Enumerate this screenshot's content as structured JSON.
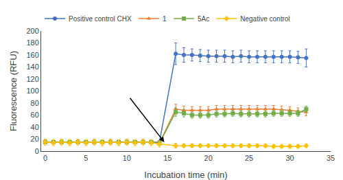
{
  "chart_data": {
    "type": "line",
    "xlabel": "Incubation time (min)",
    "ylabel": "Fluorescence (RFU)",
    "xlim": [
      -0.5,
      35
    ],
    "ylim": [
      0,
      200
    ],
    "xticks": [
      0,
      5,
      10,
      15,
      20,
      25,
      30,
      35
    ],
    "yticks": [
      0,
      20,
      40,
      60,
      80,
      100,
      120,
      140,
      160,
      180,
      200
    ],
    "grid": false,
    "legend": "top",
    "x": [
      0,
      1,
      2,
      3,
      4,
      5,
      6,
      7,
      8,
      9,
      10,
      11,
      12,
      13,
      14,
      16,
      17,
      18,
      19,
      20,
      21,
      22,
      23,
      24,
      25,
      26,
      27,
      28,
      29,
      30,
      31,
      32
    ],
    "series": [
      {
        "name": "Positive control CHX",
        "color": "#4472C4",
        "marker": "circle",
        "line_style": "solid",
        "values": [
          15,
          15,
          15,
          15,
          15,
          15,
          15,
          15,
          15,
          15,
          15,
          15,
          15,
          15,
          15,
          162,
          160,
          160,
          159,
          158,
          158,
          158,
          157,
          158,
          157,
          157,
          157,
          157,
          157,
          157,
          156,
          155
        ],
        "errors": [
          3,
          3,
          3,
          3,
          3,
          3,
          3,
          3,
          3,
          3,
          3,
          3,
          3,
          3,
          3,
          18,
          12,
          10,
          10,
          10,
          10,
          10,
          10,
          10,
          10,
          10,
          10,
          10,
          10,
          10,
          10,
          15
        ]
      },
      {
        "name": "1",
        "color": "#ED7D31",
        "marker": "triangle-up",
        "line_style": "solid",
        "values": [
          15,
          15,
          15,
          15,
          15,
          15,
          15,
          15,
          15,
          15,
          15,
          15,
          15,
          15,
          13,
          70,
          68,
          68,
          68,
          68,
          70,
          70,
          70,
          70,
          70,
          70,
          70,
          70,
          69,
          68,
          66,
          65
        ],
        "errors": [
          3,
          3,
          3,
          3,
          3,
          3,
          3,
          3,
          3,
          3,
          3,
          3,
          3,
          3,
          3,
          8,
          7,
          6,
          6,
          6,
          6,
          6,
          6,
          6,
          6,
          6,
          6,
          6,
          6,
          6,
          6,
          6
        ]
      },
      {
        "name": "5Ac",
        "color": "#70AD47",
        "marker": "square",
        "line_style": "solid",
        "values": [
          15,
          15,
          15,
          15,
          15,
          15,
          15,
          15,
          15,
          15,
          15,
          15,
          15,
          15,
          13,
          65,
          63,
          60,
          60,
          60,
          62,
          62,
          63,
          62,
          62,
          62,
          62,
          63,
          63,
          63,
          63,
          70
        ],
        "errors": [
          3,
          3,
          3,
          3,
          3,
          3,
          3,
          3,
          3,
          3,
          3,
          3,
          3,
          3,
          3,
          7,
          6,
          5,
          5,
          5,
          5,
          5,
          5,
          5,
          5,
          5,
          5,
          5,
          5,
          5,
          5,
          5
        ]
      },
      {
        "name": "Negative control",
        "color": "#FFC000",
        "marker": "diamond",
        "line_style": "solid",
        "values": [
          15,
          14,
          15,
          14,
          15,
          14,
          15,
          14,
          15,
          14,
          15,
          14,
          15,
          14,
          12,
          9,
          9,
          9,
          9,
          9,
          9,
          9,
          9,
          9,
          9,
          9,
          9,
          8,
          8,
          8,
          8,
          9
        ],
        "errors": [
          5,
          5,
          5,
          5,
          5,
          5,
          5,
          5,
          5,
          5,
          5,
          5,
          5,
          5,
          5,
          4,
          3,
          3,
          3,
          3,
          3,
          3,
          3,
          3,
          3,
          3,
          3,
          3,
          3,
          3,
          3,
          3
        ]
      }
    ],
    "arrow": {
      "x_start": 10.3,
      "y_start": 90,
      "x_end": 14.6,
      "y_end": 15,
      "color": "black"
    }
  }
}
